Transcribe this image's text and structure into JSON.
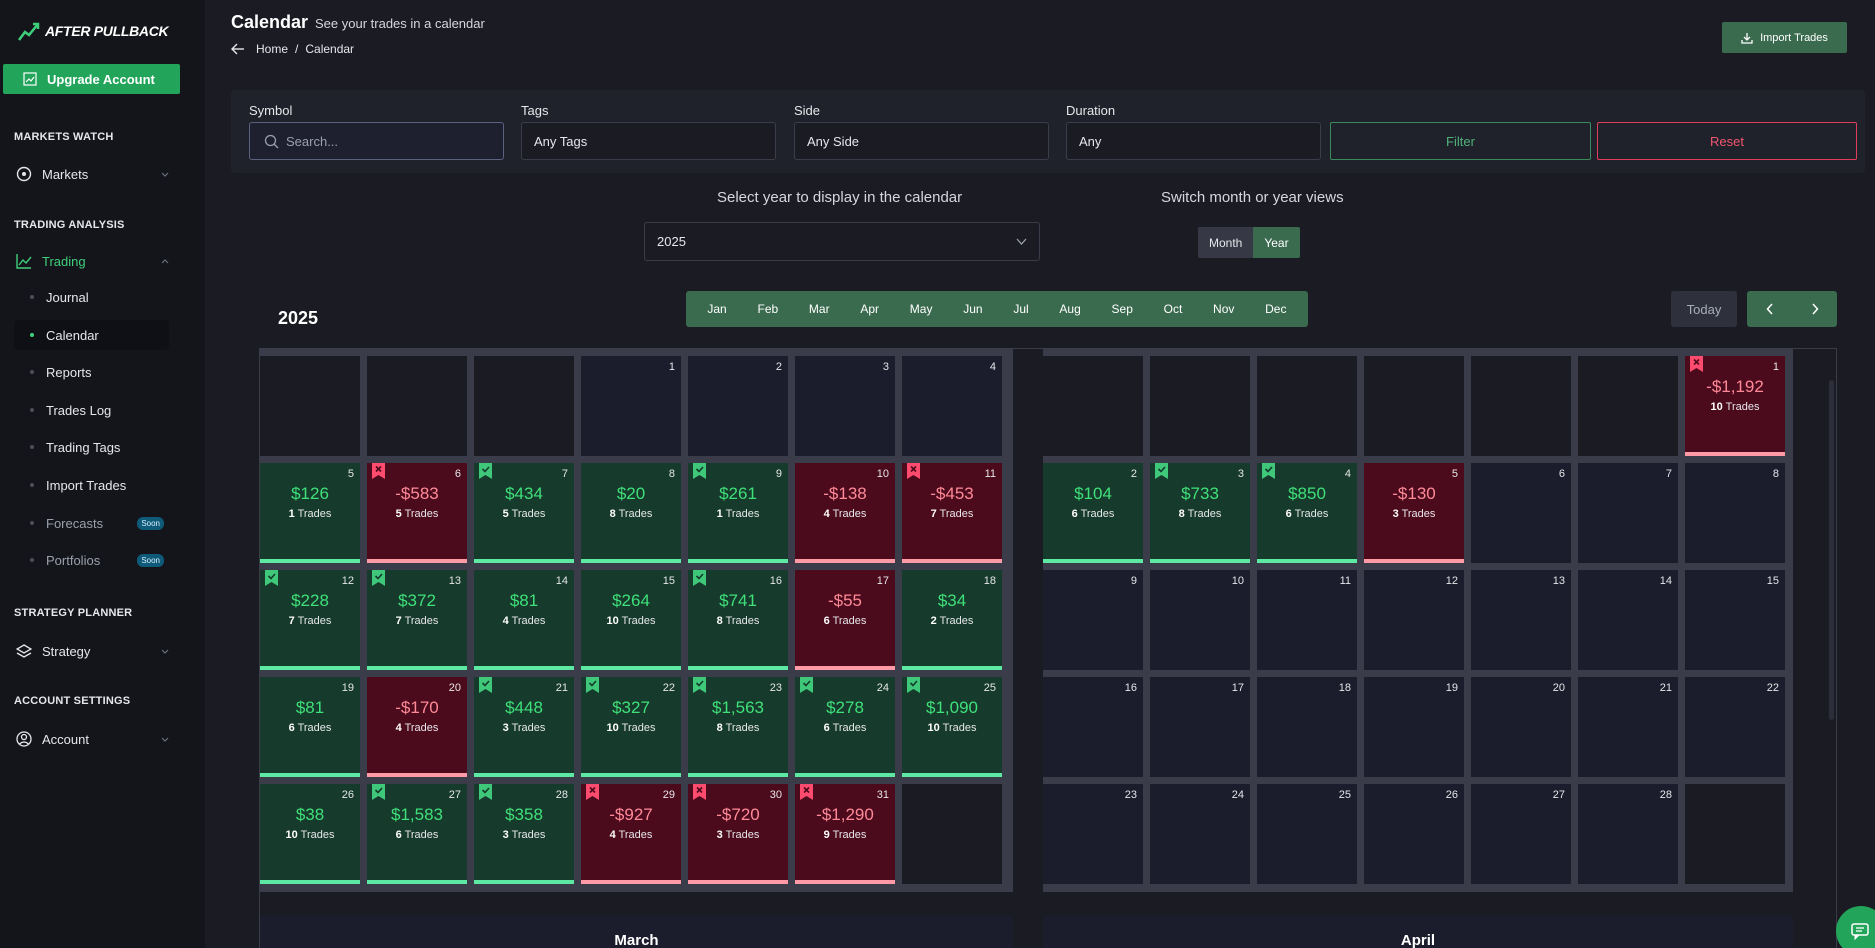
{
  "brand": {
    "name": "AFTER PULLBACK"
  },
  "sidebar": {
    "upgrade_label": "Upgrade Account",
    "sections": {
      "markets_watch": "MARKETS WATCH",
      "trading_analysis": "TRADING ANALYSIS",
      "strategy_planner": "STRATEGY PLANNER",
      "account_settings": "ACCOUNT SETTINGS"
    },
    "markets": "Markets",
    "trading": "Trading",
    "strategy": "Strategy",
    "account": "Account",
    "sub_items": [
      "Journal",
      "Calendar",
      "Reports",
      "Trades Log",
      "Trading Tags",
      "Import Trades",
      "Forecasts",
      "Portfolios"
    ],
    "soon_badge": "Soon"
  },
  "header": {
    "title": "Calendar",
    "subtitle": "See your trades in a calendar",
    "breadcrumb_home": "Home",
    "breadcrumb_sep": "/",
    "breadcrumb_current": "Calendar",
    "import_label": "Import Trades"
  },
  "filters": {
    "symbol_label": "Symbol",
    "symbol_placeholder": "Search...",
    "tags_label": "Tags",
    "tags_value": "Any Tags",
    "side_label": "Side",
    "side_value": "Any Side",
    "duration_label": "Duration",
    "duration_value": "Any",
    "filter_label": "Filter",
    "reset_label": "Reset"
  },
  "year_select": {
    "label": "Select year to display in the calendar",
    "value": "2025"
  },
  "view_toggle": {
    "label": "Switch month or year views",
    "month": "Month",
    "year": "Year",
    "active": "Year"
  },
  "calendar": {
    "year_heading": "2025",
    "months": [
      "Jan",
      "Feb",
      "Mar",
      "Apr",
      "May",
      "Jun",
      "Jul",
      "Aug",
      "Sep",
      "Oct",
      "Nov",
      "Dec"
    ],
    "today_label": "Today",
    "trades_word": "Trades",
    "march": {
      "name": "March",
      "days": [
        {
          "day": 1,
          "pnl": "",
          "trades": null,
          "result": "none"
        },
        {
          "day": 2,
          "pnl": "",
          "trades": null,
          "result": "none"
        },
        {
          "day": 3,
          "pnl": "",
          "trades": null,
          "result": "none"
        },
        {
          "day": 4,
          "pnl": "",
          "trades": null,
          "result": "none"
        },
        {
          "day": 5,
          "pnl": "$126",
          "trades": 1,
          "result": "win",
          "flag": false
        },
        {
          "day": 6,
          "pnl": "-$583",
          "trades": 5,
          "result": "loss",
          "flag": true
        },
        {
          "day": 7,
          "pnl": "$434",
          "trades": 5,
          "result": "win",
          "flag": true
        },
        {
          "day": 8,
          "pnl": "$20",
          "trades": 8,
          "result": "win",
          "flag": false
        },
        {
          "day": 9,
          "pnl": "$261",
          "trades": 1,
          "result": "win",
          "flag": true
        },
        {
          "day": 10,
          "pnl": "-$138",
          "trades": 4,
          "result": "loss",
          "flag": false
        },
        {
          "day": 11,
          "pnl": "-$453",
          "trades": 7,
          "result": "loss",
          "flag": true
        },
        {
          "day": 12,
          "pnl": "$228",
          "trades": 7,
          "result": "win",
          "flag": true
        },
        {
          "day": 13,
          "pnl": "$372",
          "trades": 7,
          "result": "win",
          "flag": true
        },
        {
          "day": 14,
          "pnl": "$81",
          "trades": 4,
          "result": "win",
          "flag": false
        },
        {
          "day": 15,
          "pnl": "$264",
          "trades": 10,
          "result": "win",
          "flag": false
        },
        {
          "day": 16,
          "pnl": "$741",
          "trades": 8,
          "result": "win",
          "flag": true
        },
        {
          "day": 17,
          "pnl": "-$55",
          "trades": 6,
          "result": "loss",
          "flag": false
        },
        {
          "day": 18,
          "pnl": "$34",
          "trades": 2,
          "result": "win",
          "flag": false
        },
        {
          "day": 19,
          "pnl": "$81",
          "trades": 6,
          "result": "win",
          "flag": false
        },
        {
          "day": 20,
          "pnl": "-$170",
          "trades": 4,
          "result": "loss",
          "flag": false
        },
        {
          "day": 21,
          "pnl": "$448",
          "trades": 3,
          "result": "win",
          "flag": true
        },
        {
          "day": 22,
          "pnl": "$327",
          "trades": 10,
          "result": "win",
          "flag": true
        },
        {
          "day": 23,
          "pnl": "$1,563",
          "trades": 8,
          "result": "win",
          "flag": true
        },
        {
          "day": 24,
          "pnl": "$278",
          "trades": 6,
          "result": "win",
          "flag": true
        },
        {
          "day": 25,
          "pnl": "$1,090",
          "trades": 10,
          "result": "win",
          "flag": true
        },
        {
          "day": 26,
          "pnl": "$38",
          "trades": 10,
          "result": "win",
          "flag": false
        },
        {
          "day": 27,
          "pnl": "$1,583",
          "trades": 6,
          "result": "win",
          "flag": true
        },
        {
          "day": 28,
          "pnl": "$358",
          "trades": 3,
          "result": "win",
          "flag": true
        },
        {
          "day": 29,
          "pnl": "-$927",
          "trades": 4,
          "result": "loss",
          "flag": true
        },
        {
          "day": 30,
          "pnl": "-$720",
          "trades": 3,
          "result": "loss",
          "flag": true
        },
        {
          "day": 31,
          "pnl": "-$1,290",
          "trades": 9,
          "result": "loss",
          "flag": true
        }
      ]
    },
    "april": {
      "name": "April",
      "days": [
        {
          "day": 1,
          "pnl": "-$1,192",
          "trades": 10,
          "result": "loss",
          "flag": true
        },
        {
          "day": 2,
          "pnl": "$104",
          "trades": 6,
          "result": "win",
          "flag": false
        },
        {
          "day": 3,
          "pnl": "$733",
          "trades": 8,
          "result": "win",
          "flag": true
        },
        {
          "day": 4,
          "pnl": "$850",
          "trades": 6,
          "result": "win",
          "flag": true
        },
        {
          "day": 5,
          "pnl": "-$130",
          "trades": 3,
          "result": "loss",
          "flag": false
        },
        {
          "day": 6,
          "result": "none"
        },
        {
          "day": 7,
          "result": "none"
        },
        {
          "day": 8,
          "result": "none"
        },
        {
          "day": 9,
          "result": "none"
        },
        {
          "day": 10,
          "result": "none"
        },
        {
          "day": 11,
          "result": "none"
        },
        {
          "day": 12,
          "result": "none"
        },
        {
          "day": 13,
          "result": "none"
        },
        {
          "day": 14,
          "result": "none"
        },
        {
          "day": 15,
          "result": "none"
        },
        {
          "day": 16,
          "result": "none"
        },
        {
          "day": 17,
          "result": "none"
        },
        {
          "day": 18,
          "result": "none"
        },
        {
          "day": 19,
          "result": "none"
        },
        {
          "day": 20,
          "result": "none"
        },
        {
          "day": 21,
          "result": "none"
        },
        {
          "day": 22,
          "result": "none"
        },
        {
          "day": 23,
          "result": "none"
        },
        {
          "day": 24,
          "result": "none"
        },
        {
          "day": 25,
          "result": "none"
        },
        {
          "day": 26,
          "result": "none"
        },
        {
          "day": 27,
          "result": "none"
        },
        {
          "day": 28,
          "result": "none"
        }
      ]
    }
  },
  "colors": {
    "accent_green": "#22a55a",
    "win_bg": "#163a2b",
    "loss_bg": "#4c0a1d",
    "win_text": "#3fe07a",
    "loss_text": "#ff8a97",
    "filter_border": "#3b8a5c",
    "reset_border": "#e23c5c"
  }
}
